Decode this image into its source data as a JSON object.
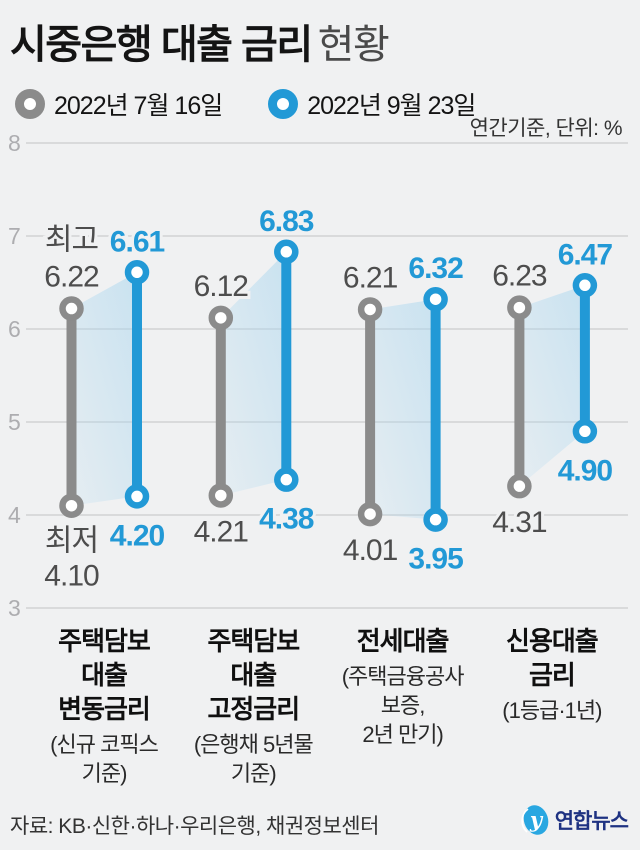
{
  "title": {
    "main": "시중은행 대출 금리",
    "sub": "현황"
  },
  "legend": [
    {
      "label": "2022년 7월 16일",
      "color": "#8b8b8b"
    },
    {
      "label": "2022년 9월 23일",
      "color": "#2299d6"
    }
  ],
  "note": "연간기준, 단위: %",
  "source": "자료: KB·신한·하나·우리은행, 채권정보센터",
  "logo": {
    "text": "연합뉴스"
  },
  "colors": {
    "background": "#f0f1f2",
    "grid": "#d9dadb",
    "axis_label": "#adadb0",
    "gray_series": "#8b8b8b",
    "blue_series": "#2299d6",
    "gray_label": "#4d4d4d",
    "band": "#a9d6ef",
    "navy": "#1e3282"
  },
  "chart_data": {
    "type": "dumbbell_range",
    "title": "시중은행 대출 금리 현황",
    "unit": "%",
    "note": "연간기준, 단위: %",
    "grid": true,
    "y_axis": {
      "min": 3,
      "max": 8,
      "ticks": [
        8,
        7,
        6,
        5,
        4,
        3
      ]
    },
    "annotations": {
      "high": "최고",
      "low": "최저"
    },
    "groups": [
      {
        "main": [
          "주택담보",
          "대출",
          "변동금리"
        ],
        "sub": [
          "(신규 코픽스",
          "기준)"
        ]
      },
      {
        "main": [
          "주택담보",
          "대출",
          "고정금리"
        ],
        "sub": [
          "(은행채 5년물",
          "기준)"
        ]
      },
      {
        "main": [
          "전세대출"
        ],
        "sub": [
          "(주택금융공사",
          "보증,",
          "2년 만기)"
        ]
      },
      {
        "main": [
          "신용대출",
          "금리"
        ],
        "sub": [
          "(1등급·1년)"
        ]
      }
    ],
    "series": [
      {
        "name": "2022년 7월 16일",
        "color": "#8b8b8b",
        "points": [
          {
            "high": 6.22,
            "low": 4.1
          },
          {
            "high": 6.12,
            "low": 4.21
          },
          {
            "high": 6.21,
            "low": 4.01
          },
          {
            "high": 6.23,
            "low": 4.31
          }
        ]
      },
      {
        "name": "2022년 9월 23일",
        "color": "#2299d6",
        "points": [
          {
            "high": 6.61,
            "low": 4.2
          },
          {
            "high": 6.83,
            "low": 4.38
          },
          {
            "high": 6.32,
            "low": 3.95
          },
          {
            "high": 6.47,
            "low": 4.9
          }
        ]
      }
    ]
  }
}
